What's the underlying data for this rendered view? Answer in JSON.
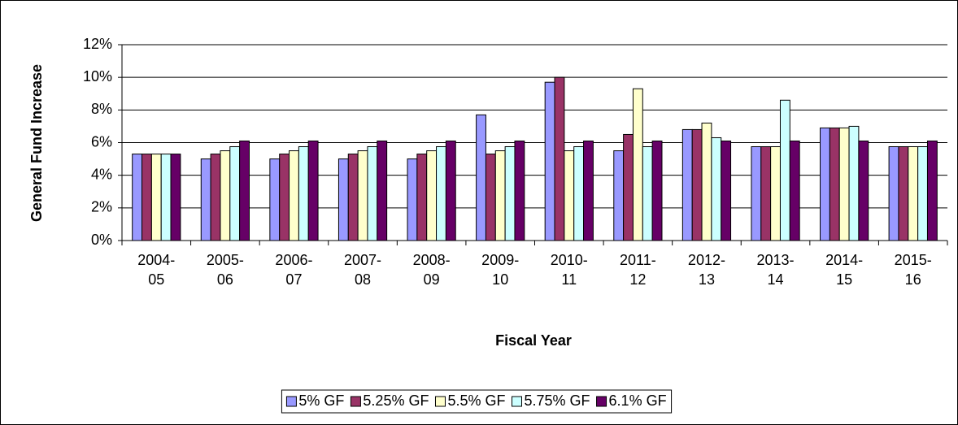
{
  "chart_data": {
    "type": "bar",
    "y_label": "General Fund Increase",
    "x_label": "Fiscal Year",
    "categories": [
      "2004- 05",
      "2005- 06",
      "2006- 07",
      "2007- 08",
      "2008- 09",
      "2009- 10",
      "2010- 11",
      "2011- 12",
      "2012- 13",
      "2013- 14",
      "2014- 15",
      "2015- 16"
    ],
    "series": [
      {
        "name": "5% GF",
        "color": "#9999ff",
        "values": [
          5.3,
          5.0,
          5.0,
          5.0,
          5.0,
          7.7,
          9.7,
          5.5,
          6.8,
          5.75,
          6.9,
          5.75
        ]
      },
      {
        "name": "5.25% GF",
        "color": "#993366",
        "values": [
          5.3,
          5.3,
          5.3,
          5.3,
          5.3,
          5.3,
          10.0,
          6.5,
          6.8,
          5.75,
          6.9,
          5.75
        ]
      },
      {
        "name": "5.5% GF",
        "color": "#ffffcc",
        "values": [
          5.3,
          5.5,
          5.5,
          5.5,
          5.5,
          5.5,
          5.5,
          9.3,
          7.2,
          5.75,
          6.9,
          5.75
        ]
      },
      {
        "name": "5.75% GF",
        "color": "#ccffff",
        "values": [
          5.3,
          5.75,
          5.75,
          5.75,
          5.75,
          5.75,
          5.75,
          5.75,
          6.3,
          8.6,
          7.0,
          5.75
        ]
      },
      {
        "name": "6.1% GF",
        "color": "#660066",
        "values": [
          5.3,
          6.1,
          6.1,
          6.1,
          6.1,
          6.1,
          6.1,
          6.1,
          6.1,
          6.1,
          6.1,
          6.1
        ]
      }
    ],
    "ylim": [
      0,
      12
    ],
    "yticks": [
      {
        "value": 0,
        "label": "0%"
      },
      {
        "value": 2,
        "label": "2%"
      },
      {
        "value": 4,
        "label": "4%"
      },
      {
        "value": 6,
        "label": "6%"
      },
      {
        "value": 8,
        "label": "8%"
      },
      {
        "value": 10,
        "label": "10%"
      },
      {
        "value": 12,
        "label": "12%"
      }
    ],
    "grid": true,
    "legend": "bottom"
  }
}
